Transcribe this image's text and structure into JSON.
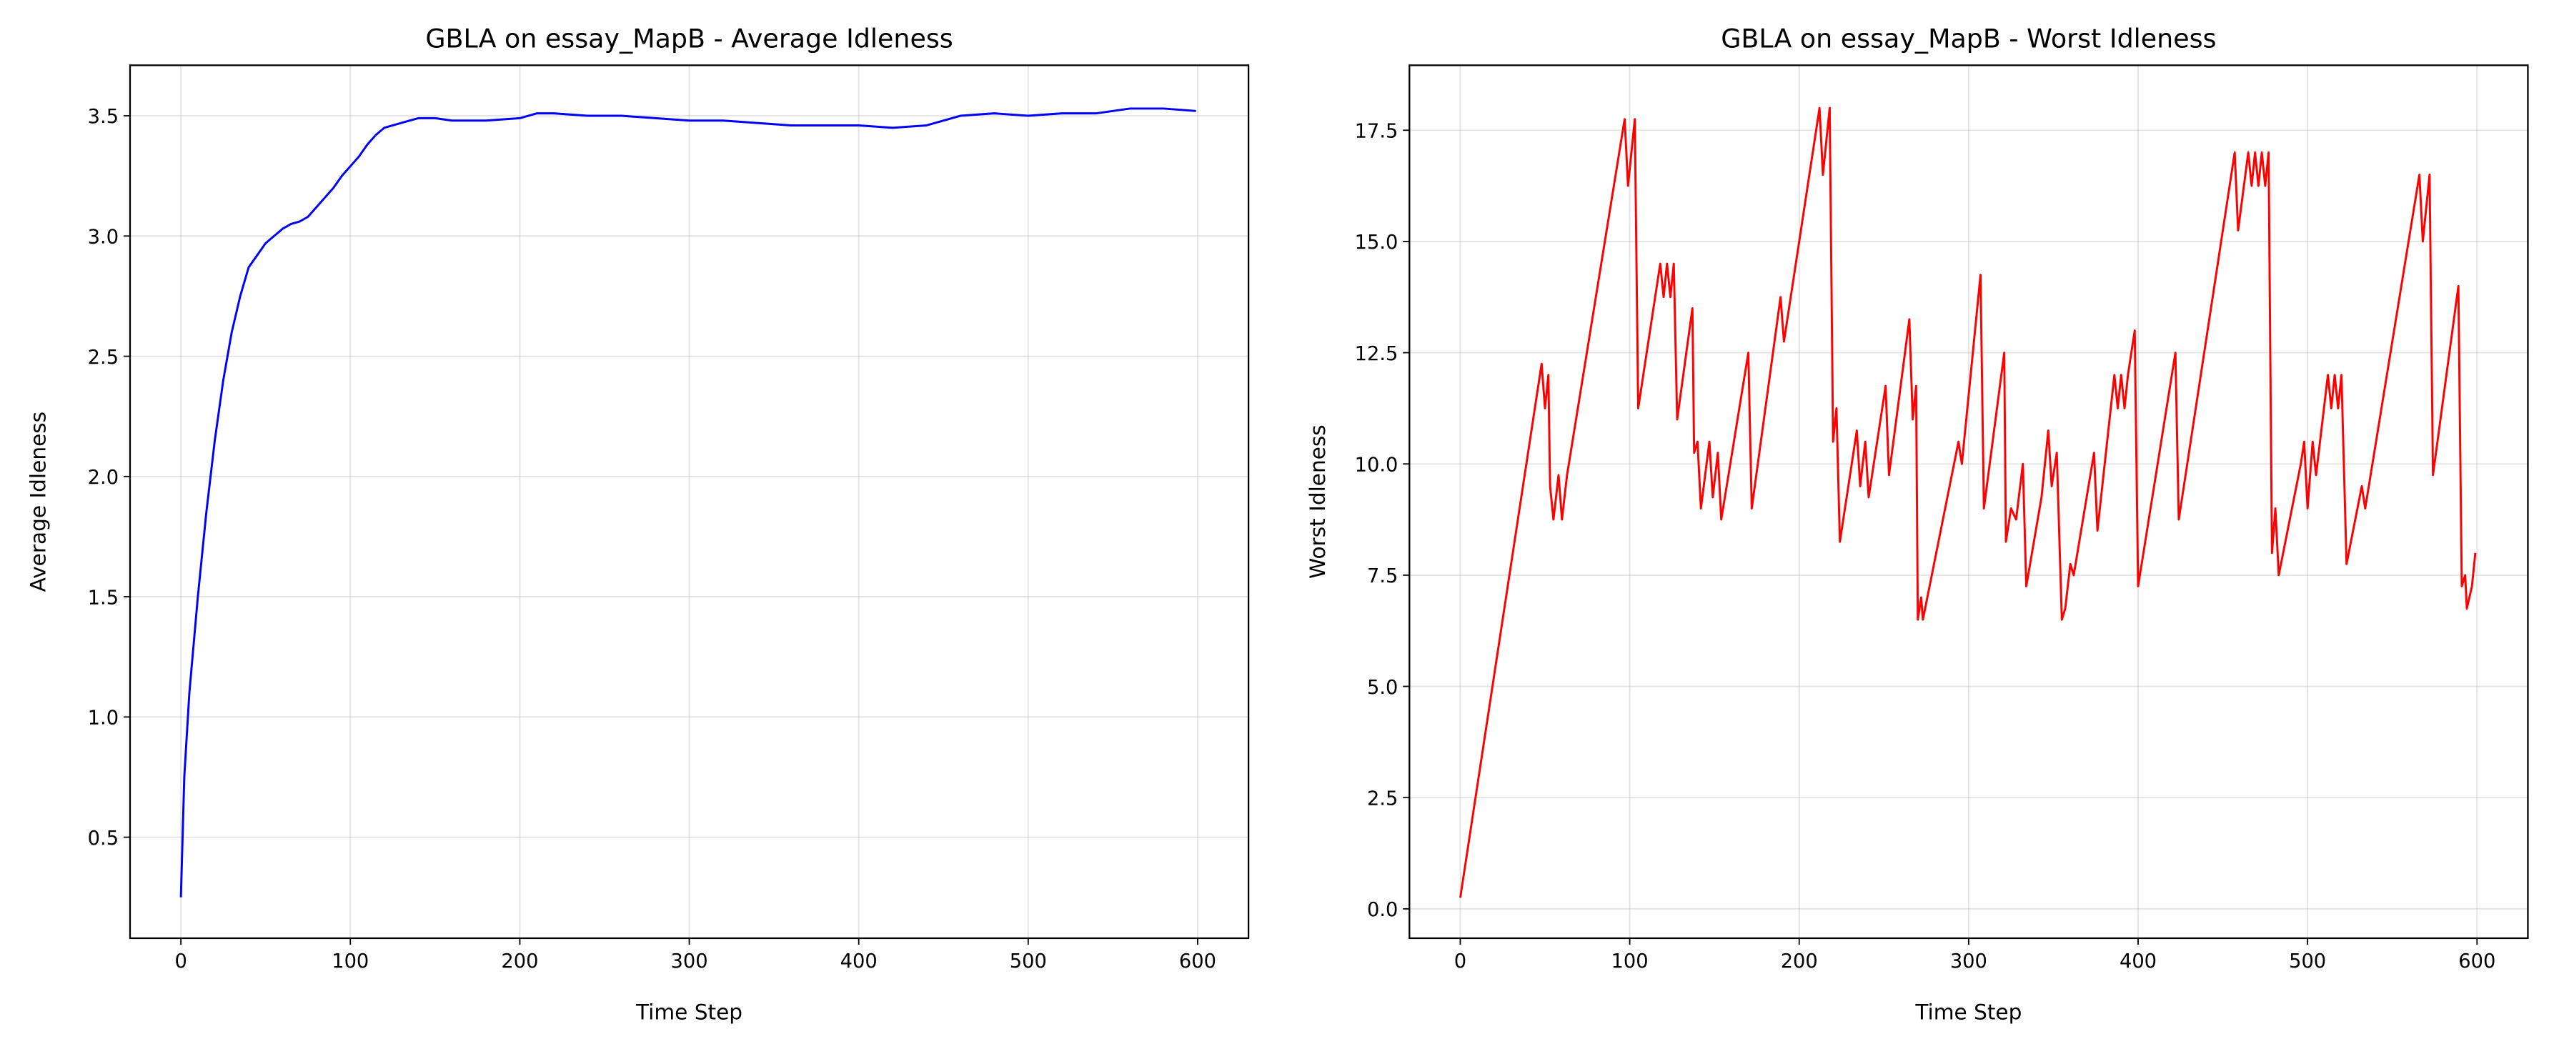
{
  "chart_data": [
    {
      "type": "line",
      "title": "GBLA on essay_MapB - Average Idleness",
      "xlabel": "Time Step",
      "ylabel": "Average Idleness",
      "xlim": [
        -30,
        630
      ],
      "xticks": [
        0,
        100,
        200,
        300,
        400,
        500,
        600
      ],
      "ylim": [
        0.08,
        3.71
      ],
      "yticks": [
        0.5,
        {
          "value": 1.0,
          "label": "1.0"
        },
        1.5,
        {
          "value": 2.0,
          "label": "2.0"
        },
        2.5,
        {
          "value": 3.0,
          "label": "3.0"
        },
        3.5
      ],
      "grid": true,
      "series": [
        {
          "color": "#0000ff",
          "x": [
            0,
            2,
            5,
            10,
            15,
            20,
            25,
            30,
            35,
            40,
            45,
            50,
            55,
            60,
            65,
            70,
            75,
            80,
            85,
            90,
            95,
            100,
            105,
            110,
            115,
            120,
            130,
            140,
            150,
            160,
            180,
            200,
            210,
            220,
            240,
            260,
            280,
            300,
            320,
            340,
            360,
            380,
            400,
            420,
            440,
            460,
            480,
            500,
            520,
            540,
            560,
            580,
            599
          ],
          "values": [
            0.25,
            0.75,
            1.1,
            1.5,
            1.85,
            2.15,
            2.4,
            2.6,
            2.75,
            2.87,
            2.92,
            2.97,
            3.0,
            3.03,
            3.05,
            3.06,
            3.08,
            3.12,
            3.16,
            3.2,
            3.25,
            3.29,
            3.33,
            3.38,
            3.42,
            3.45,
            3.47,
            3.49,
            3.49,
            3.48,
            3.48,
            3.49,
            3.51,
            3.51,
            3.5,
            3.5,
            3.49,
            3.48,
            3.48,
            3.47,
            3.46,
            3.46,
            3.46,
            3.45,
            3.46,
            3.5,
            3.51,
            3.5,
            3.51,
            3.51,
            3.53,
            3.53,
            3.52
          ]
        }
      ]
    },
    {
      "type": "line",
      "title": "GBLA on essay_MapB - Worst Idleness",
      "xlabel": "Time Step",
      "ylabel": "Worst Idleness",
      "xlim": [
        -30,
        630
      ],
      "xticks": [
        0,
        100,
        200,
        300,
        400,
        500,
        600
      ],
      "ylim": [
        -0.66,
        18.96
      ],
      "yticks": [
        {
          "value": 0,
          "label": "0.0"
        },
        2.5,
        {
          "value": 5,
          "label": "5.0"
        },
        7.5,
        {
          "value": 10,
          "label": "10.0"
        },
        12.5,
        {
          "value": 15,
          "label": "15.0"
        },
        17.5
      ],
      "grid": true,
      "series": [
        {
          "color": "#ff0000",
          "x": [
            0,
            48,
            50,
            52,
            53,
            55,
            58,
            60,
            63,
            97,
            99,
            103,
            105,
            118,
            120,
            122,
            124,
            126,
            128,
            137,
            138,
            140,
            142,
            147,
            149,
            152,
            154,
            170,
            172,
            189,
            191,
            212,
            214,
            218,
            220,
            222,
            224,
            234,
            236,
            239,
            241,
            251,
            253,
            265,
            267,
            269,
            270,
            272,
            273,
            294,
            296,
            307,
            309,
            321,
            322,
            325,
            328,
            332,
            334,
            343,
            347,
            349,
            352,
            355,
            357,
            360,
            362,
            374,
            376,
            386,
            388,
            390,
            392,
            394,
            398,
            400,
            422,
            424,
            457,
            459,
            465,
            467,
            469,
            471,
            473,
            475,
            477,
            479,
            481,
            483,
            496,
            498,
            500,
            503,
            505,
            512,
            514,
            516,
            518,
            520,
            523,
            532,
            534,
            566,
            568,
            572,
            574,
            589,
            591,
            593,
            594,
            597,
            599
          ],
          "values": [
            0.25,
            12.25,
            11.25,
            12,
            9.5,
            8.75,
            9.75,
            8.75,
            9.75,
            17.75,
            16.25,
            17.75,
            11.25,
            14.5,
            13.75,
            14.5,
            13.75,
            14.5,
            11,
            13.5,
            10.25,
            10.5,
            9,
            10.5,
            9.25,
            10.25,
            8.75,
            12.5,
            9,
            13.75,
            12.75,
            18,
            16.5,
            18,
            10.5,
            11.25,
            8.25,
            10.75,
            9.5,
            10.5,
            9.25,
            11.75,
            9.75,
            13.25,
            11,
            11.75,
            6.5,
            7,
            6.5,
            10.5,
            10,
            14.25,
            9,
            12.5,
            8.25,
            9,
            8.75,
            10,
            7.25,
            9.25,
            10.75,
            9.5,
            10.25,
            6.5,
            6.75,
            7.75,
            7.5,
            10.25,
            8.5,
            12,
            11.25,
            12,
            11.25,
            12,
            13,
            7.25,
            12.5,
            8.75,
            17,
            15.25,
            17,
            16.25,
            17,
            16.25,
            17,
            16.25,
            17,
            8,
            9,
            7.5,
            10,
            10.5,
            9,
            10.5,
            9.75,
            12,
            11.25,
            12,
            11.25,
            12,
            7.75,
            9.5,
            9,
            16.5,
            15,
            16.5,
            9.75,
            14,
            7.25,
            7.5,
            6.75,
            7.25,
            8
          ]
        }
      ]
    }
  ]
}
